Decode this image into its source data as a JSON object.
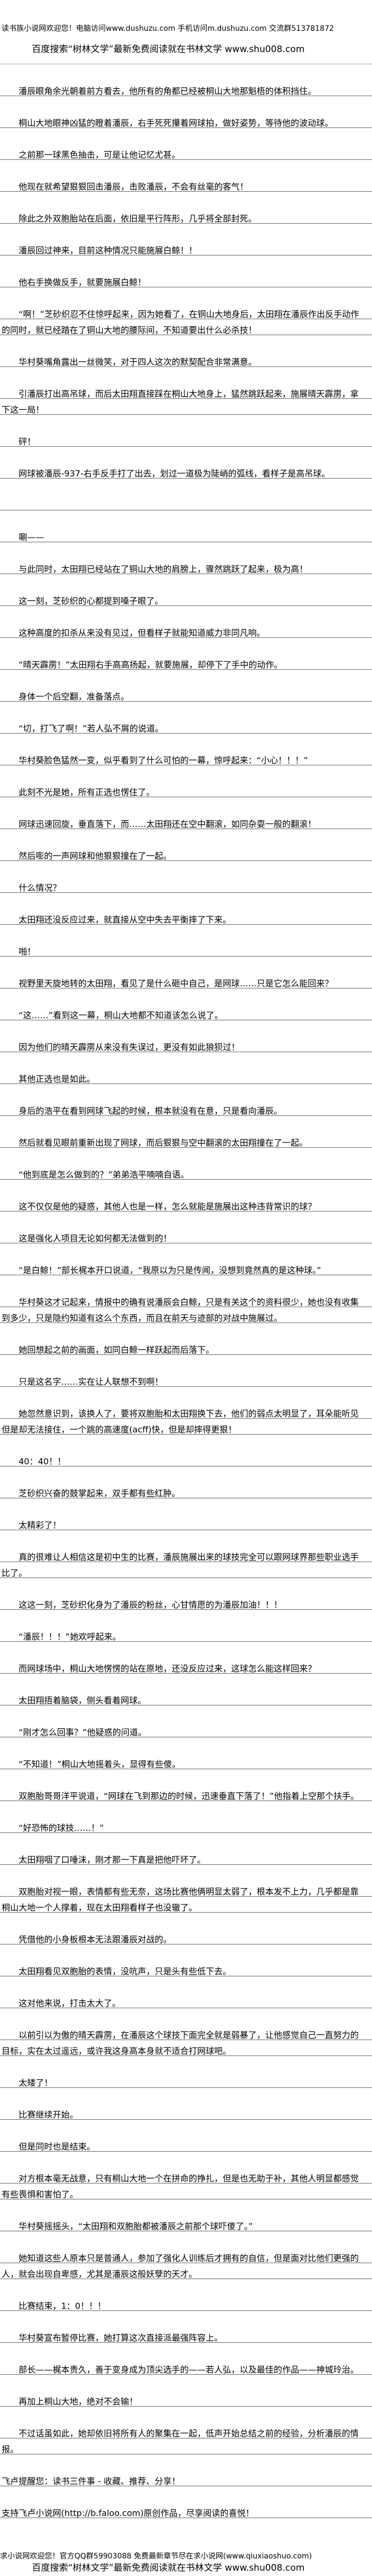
{
  "header": {
    "site_banner": "读书族小说网欢迎您！电脑访问www.dushuzu.com 手机访问m.dushuzu.com 交流群513781872",
    "search_banner": "百度搜索“树林文学”最新免费阅读就在书林文学 www.shu008.com"
  },
  "chapter": {
    "paragraphs": [
      "潘辰眼角余光朝着前方看去，他所有的角都已经被桐山大地那魁梧的体积挡住。",
      "桐山大地眼神凶猛的瞪着潘辰，右手死死攥着网球拍，做好姿势，等待他的波动球。",
      "之前那一球黑色抽击，可是让他记忆尤甚。",
      "他现在就希望狠狠回击潘辰，击败潘辰，不会有丝毫的客气！",
      "除此之外双胞胎站在后面，依旧是平行阵形，几乎将全部封死。",
      "潘辰回过神来，目前这种情况只能施展白鲸！！",
      "他右手换做反手，就要施展白鲸！",
      "“啊！”芝砂织忍不住惊呼起来，因为她看了，在铜山大地身后，太田翔在潘辰作出反手动作的同时，就已经踏在了铜山大地的腰际间，不知道要出什么必杀技！",
      "华村葵嘴角露出一丝微笑，对于四人这次的默契配合非常满意。",
      "引潘辰打出高吊球，而后太田翔直接踩在桐山大地身上，猛然跳跃起来，施展晴天霹雳，拿下这一局！",
      "砰！",
      "网球被潘辰-937-右手反手打了出去，划过一道极为陡峭的弧线，看样子是高吊球。",
      "",
      "唰——",
      "与此同时，太田翔已经站在了铜山大地的肩膀上，骤然跳跃了起来，极为高！",
      "这一刻，芝砂织的心都提到嗓子眼了。",
      "这种高度的扣杀从来没有见过，但看样子就能知道威力非同凡响。",
      "“晴天霹雳！”太田翔右手高高扬起，就要施展，却停下了手中的动作。",
      "身体一个后空翻，准备落点。",
      "“切，打飞了啊！”若人弘不屑的说道。",
      "华村葵脸色猛然一变，似乎看到了什么可怕的一幕，惊呼起来：“小心！！！”",
      "此刻不光是她，所有正选也愣住了。",
      "网球迅速回旋，垂直落下，而……太田翔还在空中翻滚，如同杂耍一般的翻滚！",
      "然后嘭的一声网球和他狠狠撞在了一起。",
      "什么情况？",
      "太田翔还没反应过来，就直接从空中失去平衡摔了下来。",
      "啪！",
      "视野里天旋地转的太田翔，看见了是什么砸中自己，是网球……只是它怎么能回来？",
      "“这……”看到这一幕，桐山大地都不知道该怎么说了。",
      "因为他们的晴天霹雳从来没有失误过，更没有如此狼狈过！",
      "其他正选也是如此。",
      "身后的浩平在看到网球飞起的时候，根本就没有在意，只是看向潘辰。",
      "然后就看见眼前重新出现了网球，而后狠狠与空中翻滚的太田翔撞在了一起。",
      "“他到底是怎么做到的？”弟弟浩平喃喃自语。",
      "这不仅仅是他的疑惑，其他人也是一样，怎么就能是施展出这种违背常识的球？",
      "这是强化人项目无论如何都无法做到的！",
      "“是白鲸！”部长梶本开口说道，“我原以为只是传闻，没想到竟然真的是这种球。”",
      "华村葵这才记起来，情报中的确有说潘辰会白鲸，只是有关这个的资料很少，她也没有收集到多少，只是隐约知道有这么个东西，而且在前天与迹部的对战中施展过。",
      "她回想起之前的画面，如同白鲸一样跃起而后落下。",
      "只是这名字……实在让人联想不到啊！",
      "她忽然意识到，该换人了，要将双胞胎和太田翔换下去，他们的弱点太明显了，耳朵能听见但是却无法接住，一个跳的高速度(acff)快，但是却摔得更狠！",
      "40：40！！",
      "芝砂织兴奋的鼓掌起来，双手都有些红肿。",
      "太精彩了！",
      "真的很难让人相信这是初中生的比赛，潘辰施展出来的球技完全可以跟网球界那些职业选手比了。",
      "这这一刻，芝砂织化身为了潘辰的粉丝，心甘情愿的为潘辰加油！！！",
      "“潘辰！！！”她欢呼起来。",
      "而网球场中，桐山大地愣愣的站在原地，还没反应过来，这球怎么能这样回来？",
      "太田翔捂着脑袋，侧头看着网球。",
      "“刚才怎么回事？”他疑惑的问道。",
      "“不知道！”桐山大地摇着头，显得有些傻。",
      "双胞胎哥哥洋平说道，“网球在飞到那边的时候，迅速垂直下落了！”他指着上空那个扶手。",
      "“好恐怖的球技……！”",
      "太田翔咽了口唾沫，刚才那一下真是把他吓坏了。",
      "双胞胎对视一眼，表情都有些无奈，这场比赛他俩明显太弱了，根本发不上力，几乎都是靠桐山大地一个人撑着，现在太田翔看样子也没辙了。",
      "凭借他的小身板根本无法跟潘辰对战的。",
      "太田翔看见双胞胎的表情，没吭声，只是头有些低下去。",
      "这对他来说，打击太大了。",
      "以前引以为傲的晴天霹雳，在潘辰这个球技下面完全就是弱暴了，让他感觉自己一直努力的目标，实在太过遥远，或许我这身高本身就不适合打网球吧。",
      "太矮了！",
      "比赛继续开始。",
      "但是同时也是结束。",
      "对方根本毫无战意，只有桐山大地一个在拼命的挣扎，但是也无助于补，其他人明显都感觉有些畏惧和害怕了。",
      "华村葵摇摇头，“太田翔和双胞胎都被潘辰之前那个球吓傻了。”",
      "她知道这些人原本只是普通人，参加了强化人训练后才拥有的自信，但是面对比他们更强的人，就会出现自卑感，尤其是潘辰这般妖孽的天才。",
      "比赛结束，1：0！！！",
      "华村葵宣布暂停比赛，她打算这次直接派最强阵容上。",
      "部长——梶本贵久，善于变身成为顶尖选手的——若人弘，以及最佳的作品——神城玲治。",
      "再加上桐山大地，绝对不会输！",
      "不过话虽如此，她却依旧将所有人的聚集在一起，低声开始总结之前的经验，分析潘辰的情报。"
    ],
    "notes": [
      "飞卢提醒您：读书三件事 - 收藏、推荐、分享！",
      "支持飞卢小说网(http://b.faloo.com)原创作品，尽享阅读的喜悦！"
    ]
  },
  "footer": {
    "site_banner": "求小说网欢迎您！官方QQ群59903088 免费最新章节尽在求小说网(www.qiuxiaoshuo.com)",
    "search_banner": "百度搜索“树林文学”最新免费阅读就在书林文学 www.shu008.com"
  }
}
